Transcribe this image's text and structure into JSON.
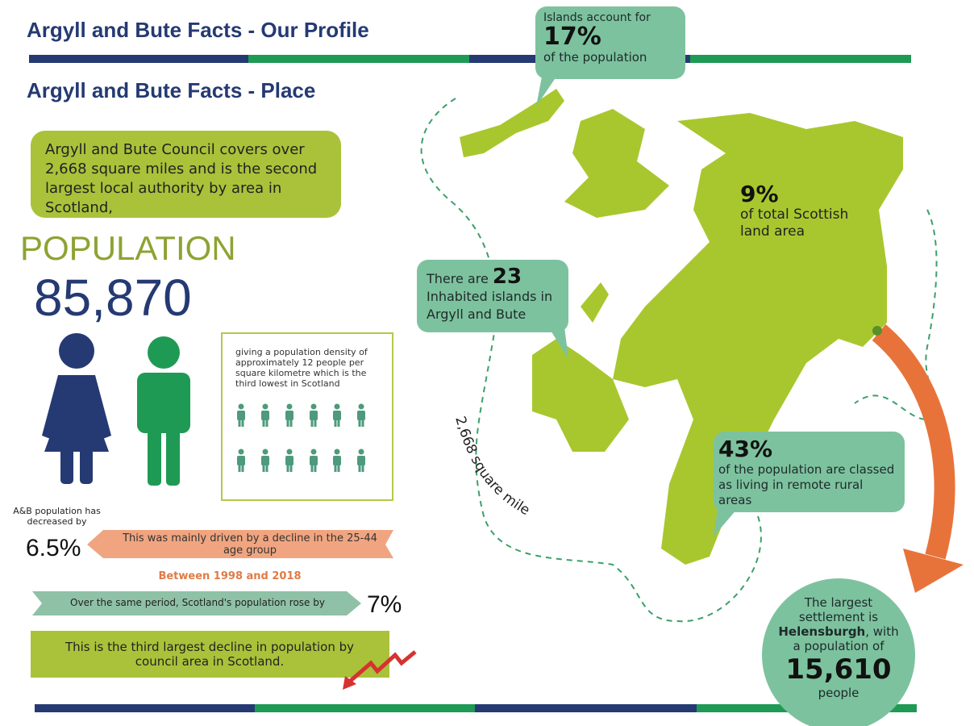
{
  "header": {
    "title": "Argyll and Bute Facts - Our Profile",
    "subtitle": "Argyll and Bute Facts - Place"
  },
  "intro": "Argyll and Bute Council covers over 2,668 square miles and is the second largest local authority by area in Scotland,",
  "population": {
    "label": "POPULATION",
    "value": "85,870",
    "density_text": "giving a population density of approximately 12 people per square kilometre which is the third lowest in Scotland"
  },
  "decline": {
    "lead": "A&B population has decreased by",
    "value": "6.5%",
    "driver": "This was mainly driven by a decline in the 25-44 age group",
    "period": "Between 1998 and 2018",
    "scotland_text": "Over the same period, Scotland's population rose by",
    "scotland_value": "7%",
    "rank": "This is the third largest decline in population by council area in Scotland."
  },
  "map": {
    "islands_share": {
      "lead": "Islands account for",
      "value": "17%",
      "tail": "of the population"
    },
    "land_share": {
      "value": "9%",
      "tail": "of total Scottish land area"
    },
    "islands_count": {
      "lead": "There are",
      "value": "23",
      "tail": "Inhabited islands in Argyll and Bute"
    },
    "area": "2,668 square miles",
    "remote": {
      "value": "43%",
      "tail": "of the population are classed as living in remote rural areas"
    },
    "settlement": {
      "lead": "The largest settlement is",
      "name": "Helensburgh",
      "mid": ", with a population of",
      "value": "15,610",
      "tail": "people"
    }
  }
}
